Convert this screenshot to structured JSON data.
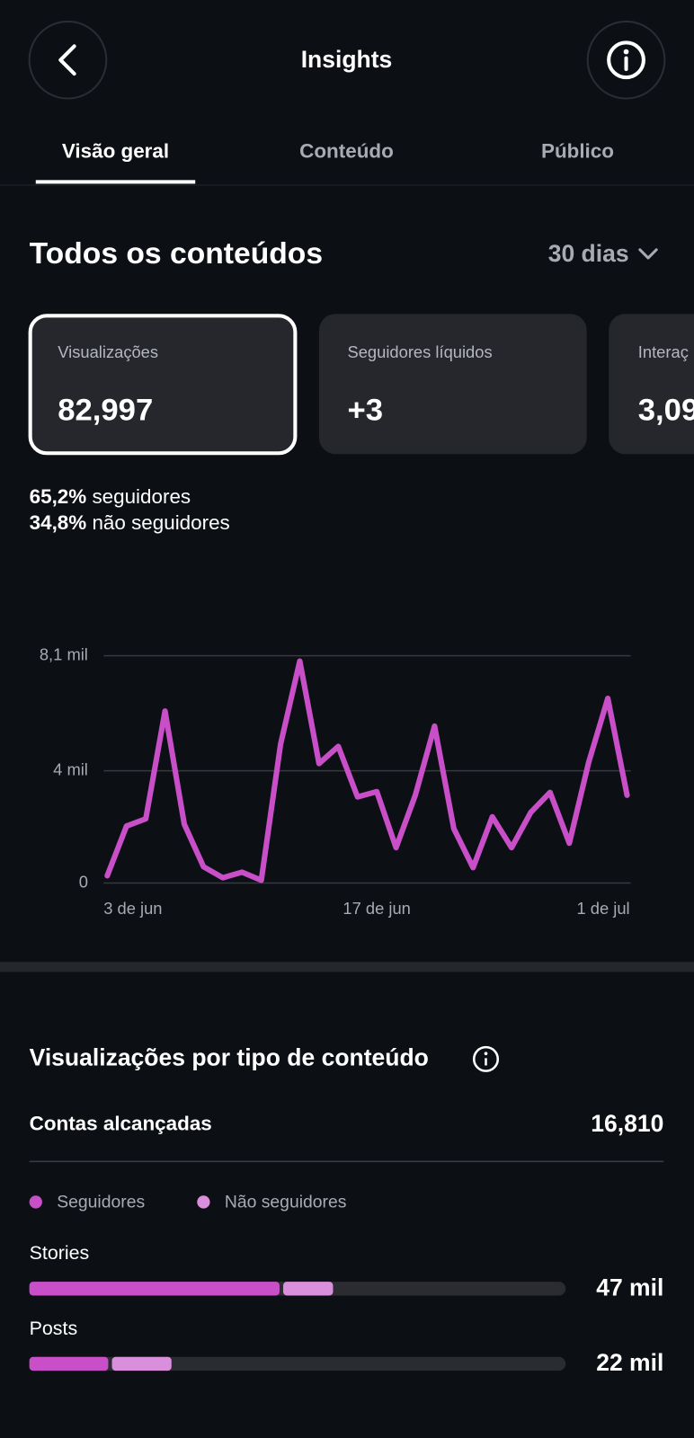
{
  "header": {
    "title": "Insights"
  },
  "tabs": [
    "Visão geral",
    "Conteúdo",
    "Público"
  ],
  "section": {
    "title": "Todos os conteúdos",
    "period": "30 dias"
  },
  "cards": [
    {
      "label": "Visualizações",
      "value": "82,997"
    },
    {
      "label": "Seguidores líquidos",
      "value": "+3"
    },
    {
      "label": "Interaç",
      "value": "3,09"
    }
  ],
  "split": [
    {
      "percent": "65,2%",
      "label": "seguidores"
    },
    {
      "percent": "34,8%",
      "label": "não seguidores"
    }
  ],
  "reach": {
    "label": "Contas alcançadas",
    "value": "16,810"
  },
  "chart_data": [
    {
      "type": "line",
      "categories": [
        "3 de jun",
        null,
        null,
        null,
        null,
        null,
        null,
        null,
        null,
        null,
        null,
        null,
        null,
        null,
        "17 de jun",
        null,
        null,
        null,
        null,
        null,
        null,
        null,
        null,
        null,
        null,
        null,
        null,
        "1 de jul"
      ],
      "series": [
        {
          "name": "Visualizações",
          "color": "#c94fc9",
          "values": [
            260,
            2030,
            2290,
            6130,
            2100,
            580,
            190,
            390,
            100,
            4940,
            7910,
            4260,
            4870,
            3070,
            3260,
            1260,
            3130,
            5590,
            1940,
            550,
            2360,
            1260,
            2520,
            3230,
            1420,
            4290,
            6580,
            3130
          ]
        }
      ],
      "ylim": [
        0,
        8100
      ],
      "yticks": [
        0,
        {
          "value": 4000,
          "label": "4 mil"
        },
        {
          "value": 8100,
          "label": "8,1 mil"
        }
      ],
      "grid": true
    },
    {
      "type": "stacked-hbar",
      "title": "Visualizações por tipo de conteúdo",
      "categories": [
        "Stories",
        "Posts"
      ],
      "series": [
        {
          "name": "Seguidores",
          "color": "#c94fc9",
          "values": [
            39000,
            12500
          ]
        },
        {
          "name": "Não seguidores",
          "color": "#da8fdc",
          "values": [
            8000,
            9500
          ]
        }
      ],
      "totals": {
        "values": [
          47000,
          22000
        ],
        "value_labels": [
          "47 mil",
          "22 mil"
        ]
      },
      "xlim": [
        0,
        82997
      ]
    }
  ]
}
